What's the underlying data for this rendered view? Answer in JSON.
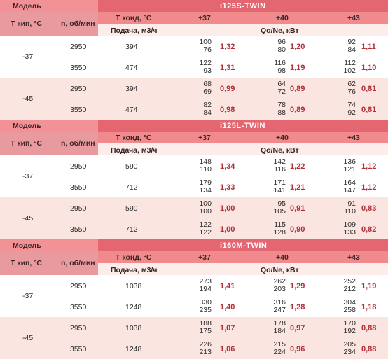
{
  "headers": {
    "model": "Модель",
    "t_kond": "Т конд, °С",
    "t_kip": "Т кип, °С",
    "n": "n, об/мин",
    "podacha": "Подача, м3/ч",
    "qo_ne": "Qo/Ne, кВт",
    "tc1": "+37",
    "tc2": "+40",
    "tc3": "+43"
  },
  "blocks": [
    {
      "title": "i125S-TWIN",
      "groups": [
        {
          "t_kip": "-37",
          "rows": [
            {
              "n": "2950",
              "flow": "394",
              "c37": [
                "100",
                "76"
              ],
              "e37": "1,32",
              "c40": [
                "96",
                "80"
              ],
              "e40": "1,20",
              "c43": [
                "92",
                "84"
              ],
              "e43": "1,11"
            },
            {
              "n": "3550",
              "flow": "474",
              "c37": [
                "122",
                "93"
              ],
              "e37": "1,31",
              "c40": [
                "116",
                "98"
              ],
              "e40": "1,19",
              "c43": [
                "112",
                "102"
              ],
              "e43": "1,10"
            }
          ]
        },
        {
          "t_kip": "-45",
          "rows": [
            {
              "n": "2950",
              "flow": "394",
              "c37": [
                "68",
                "69"
              ],
              "e37": "0,99",
              "c40": [
                "64",
                "72"
              ],
              "e40": "0,89",
              "c43": [
                "62",
                "76"
              ],
              "e43": "0,81"
            },
            {
              "n": "3550",
              "flow": "474",
              "c37": [
                "82",
                "84"
              ],
              "e37": "0,98",
              "c40": [
                "78",
                "88"
              ],
              "e40": "0,89",
              "c43": [
                "74",
                "92"
              ],
              "e43": "0,81"
            }
          ]
        }
      ]
    },
    {
      "title": "i125L-TWIN",
      "groups": [
        {
          "t_kip": "-37",
          "rows": [
            {
              "n": "2950",
              "flow": "590",
              "c37": [
                "148",
                "110"
              ],
              "e37": "1,34",
              "c40": [
                "142",
                "116"
              ],
              "e40": "1,22",
              "c43": [
                "136",
                "121"
              ],
              "e43": "1,12"
            },
            {
              "n": "3550",
              "flow": "712",
              "c37": [
                "179",
                "134"
              ],
              "e37": "1,33",
              "c40": [
                "171",
                "141"
              ],
              "e40": "1,21",
              "c43": [
                "164",
                "147"
              ],
              "e43": "1,12"
            }
          ]
        },
        {
          "t_kip": "-45",
          "rows": [
            {
              "n": "2950",
              "flow": "590",
              "c37": [
                "100",
                "100"
              ],
              "e37": "1,00",
              "c40": [
                "95",
                "105"
              ],
              "e40": "0,91",
              "c43": [
                "91",
                "110"
              ],
              "e43": "0,83"
            },
            {
              "n": "3550",
              "flow": "712",
              "c37": [
                "122",
                "122"
              ],
              "e37": "1,00",
              "c40": [
                "115",
                "128"
              ],
              "e40": "0,90",
              "c43": [
                "109",
                "133"
              ],
              "e43": "0,82"
            }
          ]
        }
      ]
    },
    {
      "title": "i160M-TWIN",
      "groups": [
        {
          "t_kip": "-37",
          "rows": [
            {
              "n": "2950",
              "flow": "1038",
              "c37": [
                "273",
                "194"
              ],
              "e37": "1,41",
              "c40": [
                "262",
                "203"
              ],
              "e40": "1,29",
              "c43": [
                "252",
                "212"
              ],
              "e43": "1,19"
            },
            {
              "n": "3550",
              "flow": "1248",
              "c37": [
                "330",
                "235"
              ],
              "e37": "1,40",
              "c40": [
                "316",
                "247"
              ],
              "e40": "1,28",
              "c43": [
                "304",
                "258"
              ],
              "e43": "1,18"
            }
          ]
        },
        {
          "t_kip": "-45",
          "rows": [
            {
              "n": "2950",
              "flow": "1038",
              "c37": [
                "188",
                "175"
              ],
              "e37": "1,07",
              "c40": [
                "178",
                "184"
              ],
              "e40": "0,97",
              "c43": [
                "170",
                "192"
              ],
              "e43": "0,88"
            },
            {
              "n": "3550",
              "flow": "1248",
              "c37": [
                "226",
                "213"
              ],
              "e37": "1,06",
              "c40": [
                "215",
                "224"
              ],
              "e40": "0,96",
              "c43": [
                "205",
                "234"
              ],
              "e43": "0,88"
            }
          ]
        }
      ]
    }
  ]
}
